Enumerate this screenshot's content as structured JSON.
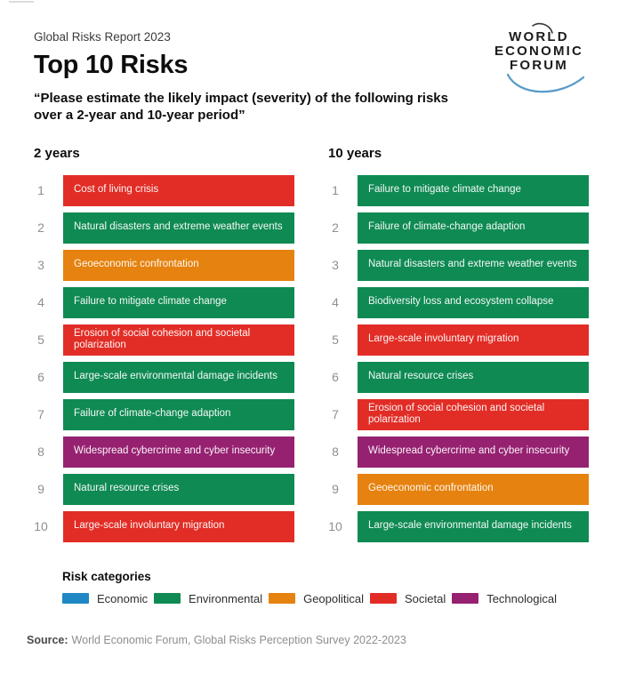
{
  "header": {
    "report_label": "Global Risks Report 2023",
    "title": "Top 10 Risks",
    "subtitle": "“Please estimate the likely impact (severity) of the following risks over a 2-year and 10-year period”"
  },
  "logo": {
    "line1": "WORLD",
    "line2": "ECONOMIC",
    "line3": "FORUM"
  },
  "colors": {
    "economic": "#1F87C4",
    "environmental": "#0F8A53",
    "geopolitical": "#E6820F",
    "societal": "#E12D26",
    "technological": "#962171"
  },
  "chart_data": {
    "type": "table",
    "title": "Top 10 Risks",
    "question": "Please estimate the likely impact (severity) of the following risks over a 2-year and 10-year period",
    "legend_position": "bottom",
    "columns": [
      {
        "title": "2 years",
        "ranking": [
          {
            "rank": 1,
            "risk": "Cost of living crisis",
            "category": "Societal"
          },
          {
            "rank": 2,
            "risk": "Natural disasters and extreme weather events",
            "category": "Environmental"
          },
          {
            "rank": 3,
            "risk": "Geoeconomic confrontation",
            "category": "Geopolitical"
          },
          {
            "rank": 4,
            "risk": "Failure to mitigate climate change",
            "category": "Environmental"
          },
          {
            "rank": 5,
            "risk": "Erosion of social cohesion and societal polarization",
            "category": "Societal"
          },
          {
            "rank": 6,
            "risk": "Large-scale environmental damage incidents",
            "category": "Environmental"
          },
          {
            "rank": 7,
            "risk": "Failure of climate-change adaption",
            "category": "Environmental"
          },
          {
            "rank": 8,
            "risk": "Widespread cybercrime and cyber insecurity",
            "category": "Technological"
          },
          {
            "rank": 9,
            "risk": "Natural resource crises",
            "category": "Environmental"
          },
          {
            "rank": 10,
            "risk": "Large-scale involuntary migration",
            "category": "Societal"
          }
        ]
      },
      {
        "title": "10 years",
        "ranking": [
          {
            "rank": 1,
            "risk": "Failure to mitigate climate change",
            "category": "Environmental"
          },
          {
            "rank": 2,
            "risk": "Failure of climate-change adaption",
            "category": "Environmental"
          },
          {
            "rank": 3,
            "risk": "Natural disasters and extreme weather events",
            "category": "Environmental"
          },
          {
            "rank": 4,
            "risk": "Biodiversity loss and ecosystem collapse",
            "category": "Environmental"
          },
          {
            "rank": 5,
            "risk": "Large-scale involuntary migration",
            "category": "Societal"
          },
          {
            "rank": 6,
            "risk": "Natural resource crises",
            "category": "Environmental"
          },
          {
            "rank": 7,
            "risk": "Erosion of social cohesion and societal polarization",
            "category": "Societal"
          },
          {
            "rank": 8,
            "risk": "Widespread cybercrime and cyber insecurity",
            "category": "Technological"
          },
          {
            "rank": 9,
            "risk": "Geoeconomic confrontation",
            "category": "Geopolitical"
          },
          {
            "rank": 10,
            "risk": "Large-scale environmental damage incidents",
            "category": "Environmental"
          }
        ]
      }
    ]
  },
  "legend": {
    "title": "Risk categories",
    "items": [
      {
        "label": "Economic",
        "category": "economic"
      },
      {
        "label": "Environmental",
        "category": "environmental"
      },
      {
        "label": "Geopolitical",
        "category": "geopolitical"
      },
      {
        "label": "Societal",
        "category": "societal"
      },
      {
        "label": "Technological",
        "category": "technological"
      }
    ]
  },
  "source": {
    "prefix": "Source:",
    "text": "World Economic Forum, Global Risks Perception Survey 2022-2023"
  }
}
